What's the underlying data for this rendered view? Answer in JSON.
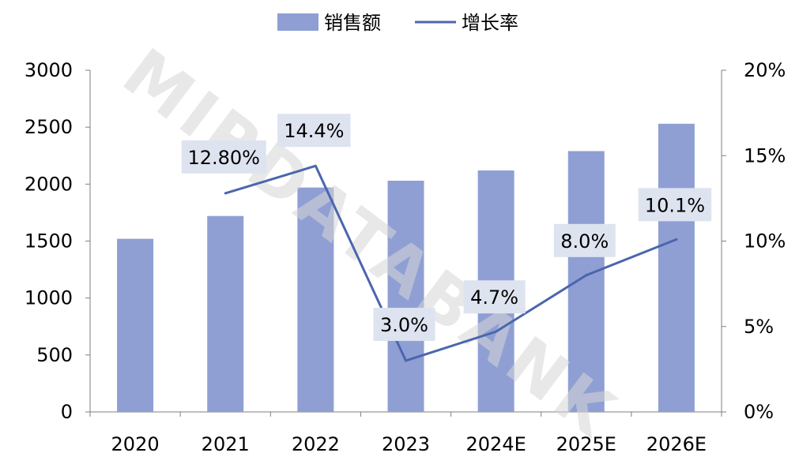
{
  "chart_data": {
    "type": "bar+line",
    "categories": [
      "2020",
      "2021",
      "2022",
      "2023",
      "2024E",
      "2025E",
      "2026E"
    ],
    "series": [
      {
        "name": "销售额",
        "type": "bar",
        "axis": "left",
        "values": [
          1520,
          1720,
          1970,
          2030,
          2120,
          2290,
          2530
        ]
      },
      {
        "name": "增长率",
        "type": "line",
        "axis": "right",
        "values": [
          null,
          12.8,
          14.4,
          3.0,
          4.7,
          8.0,
          10.1
        ],
        "labels": [
          "",
          "12.80%",
          "14.4%",
          "3.0%",
          "4.7%",
          "8.0%",
          "10.1%"
        ]
      }
    ],
    "y_left": {
      "min": 0,
      "max": 3000,
      "ticks": [
        "0",
        "500",
        "1000",
        "1500",
        "2000",
        "2500",
        "3000"
      ]
    },
    "y_right": {
      "min": 0,
      "max": 20,
      "ticks": [
        "0%",
        "5%",
        "10%",
        "15%",
        "20%"
      ]
    },
    "legend_position": "top-center",
    "grid": false,
    "colors": {
      "bar": "#8f9fd4",
      "line": "#4a66ad",
      "label_box": "#dde3ef"
    }
  },
  "watermark": "MIRDATABANK"
}
